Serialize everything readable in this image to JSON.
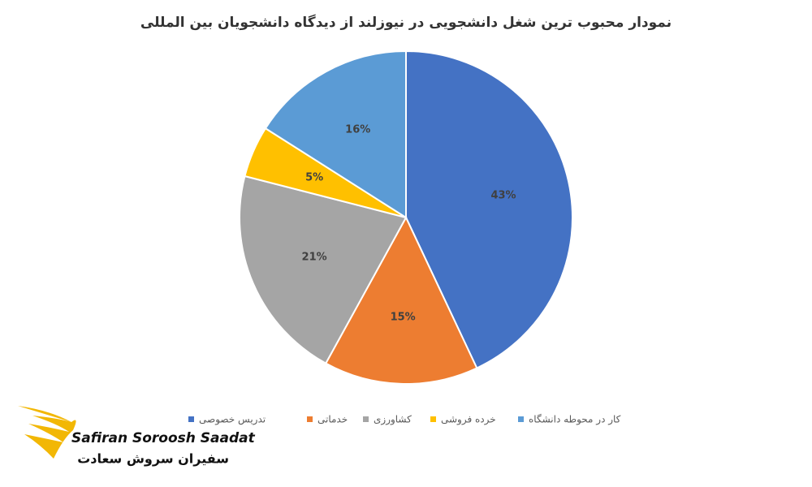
{
  "chart_data": {
    "type": "pie",
    "title": "نمودار محبوب ترین شغل دانشجویی در نیوزلند از دیدگاه دانشجویان بین المللی",
    "categories": [
      "تدریس خصوصی",
      "خدماتی",
      "کشاورزی",
      "خرده فروشی",
      "کار در محوطه دانشگاه"
    ],
    "values": [
      43,
      15,
      21,
      5,
      16
    ],
    "value_labels": [
      "43%",
      "15%",
      "21%",
      "5%",
      "16%"
    ],
    "colors": [
      "#4472c4",
      "#ed7d31",
      "#a5a5a5",
      "#ffc000",
      "#5b9bd5"
    ],
    "legend": "bottom"
  },
  "logo": {
    "name_en": "Safiran Soroosh Saadat",
    "name_fa": "سفیران سروش سعادت"
  }
}
